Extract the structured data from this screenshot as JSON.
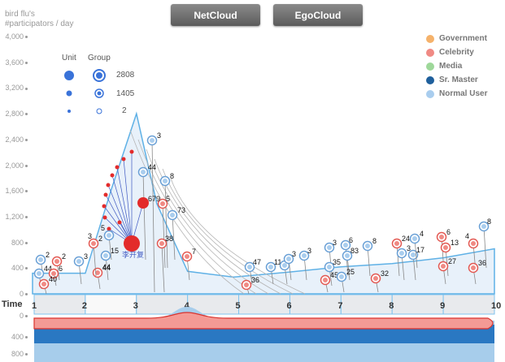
{
  "buttons": {
    "net_cloud": "NetCloud",
    "ego_cloud": "EgoCloud"
  },
  "chart_title": {
    "line1": "bird flu's",
    "line2": "#participators / day"
  },
  "y_axis_labels": [
    "4,000",
    "3,600",
    "3,200",
    "2,800",
    "2,400",
    "2,000",
    "1,600",
    "1,200",
    "800",
    "400",
    "0"
  ],
  "size_key": {
    "unit_header": "Unit",
    "group_header": "Group",
    "values": [
      "2808",
      "1405",
      "2"
    ]
  },
  "legend": [
    {
      "label": "Government",
      "color": "#f5b26b"
    },
    {
      "label": "Celebrity",
      "color": "#f08a84"
    },
    {
      "label": "Media",
      "color": "#9ed89a"
    },
    {
      "label": "Sr. Master",
      "color": "#1f5f9c"
    },
    {
      "label": "Normal User",
      "color": "#a9cdee"
    }
  ],
  "time_axis": {
    "label": "Time",
    "days": [
      "1",
      "2",
      "3",
      "4",
      "5",
      "6",
      "7",
      "8",
      "9",
      "10"
    ]
  },
  "bottom_axis_labels": [
    "0",
    "400",
    "800"
  ],
  "node_labels": [
    "2",
    "2",
    "44",
    "6",
    "40",
    "3",
    "44",
    "2",
    "15",
    "5",
    "3",
    "44",
    "8",
    "679",
    "5",
    "73",
    "38",
    "7",
    "3",
    "47",
    "36",
    "11",
    "8",
    "3",
    "3",
    "3",
    "6",
    "45",
    "35",
    "83",
    "25",
    "8",
    "32",
    "24",
    "3",
    "17",
    "4",
    "6",
    "13",
    "27",
    "4",
    "36",
    "8"
  ],
  "highlight_user": "李开复",
  "chart_data": {
    "type": "area",
    "x": [
      1,
      2,
      3,
      4,
      5,
      6,
      7,
      8,
      9,
      10
    ],
    "series": [
      {
        "values": [
          320,
          320,
          2800,
          350,
          260,
          340,
          420,
          470,
          560,
          700
        ]
      }
    ],
    "ylim": [
      0,
      4000
    ]
  }
}
